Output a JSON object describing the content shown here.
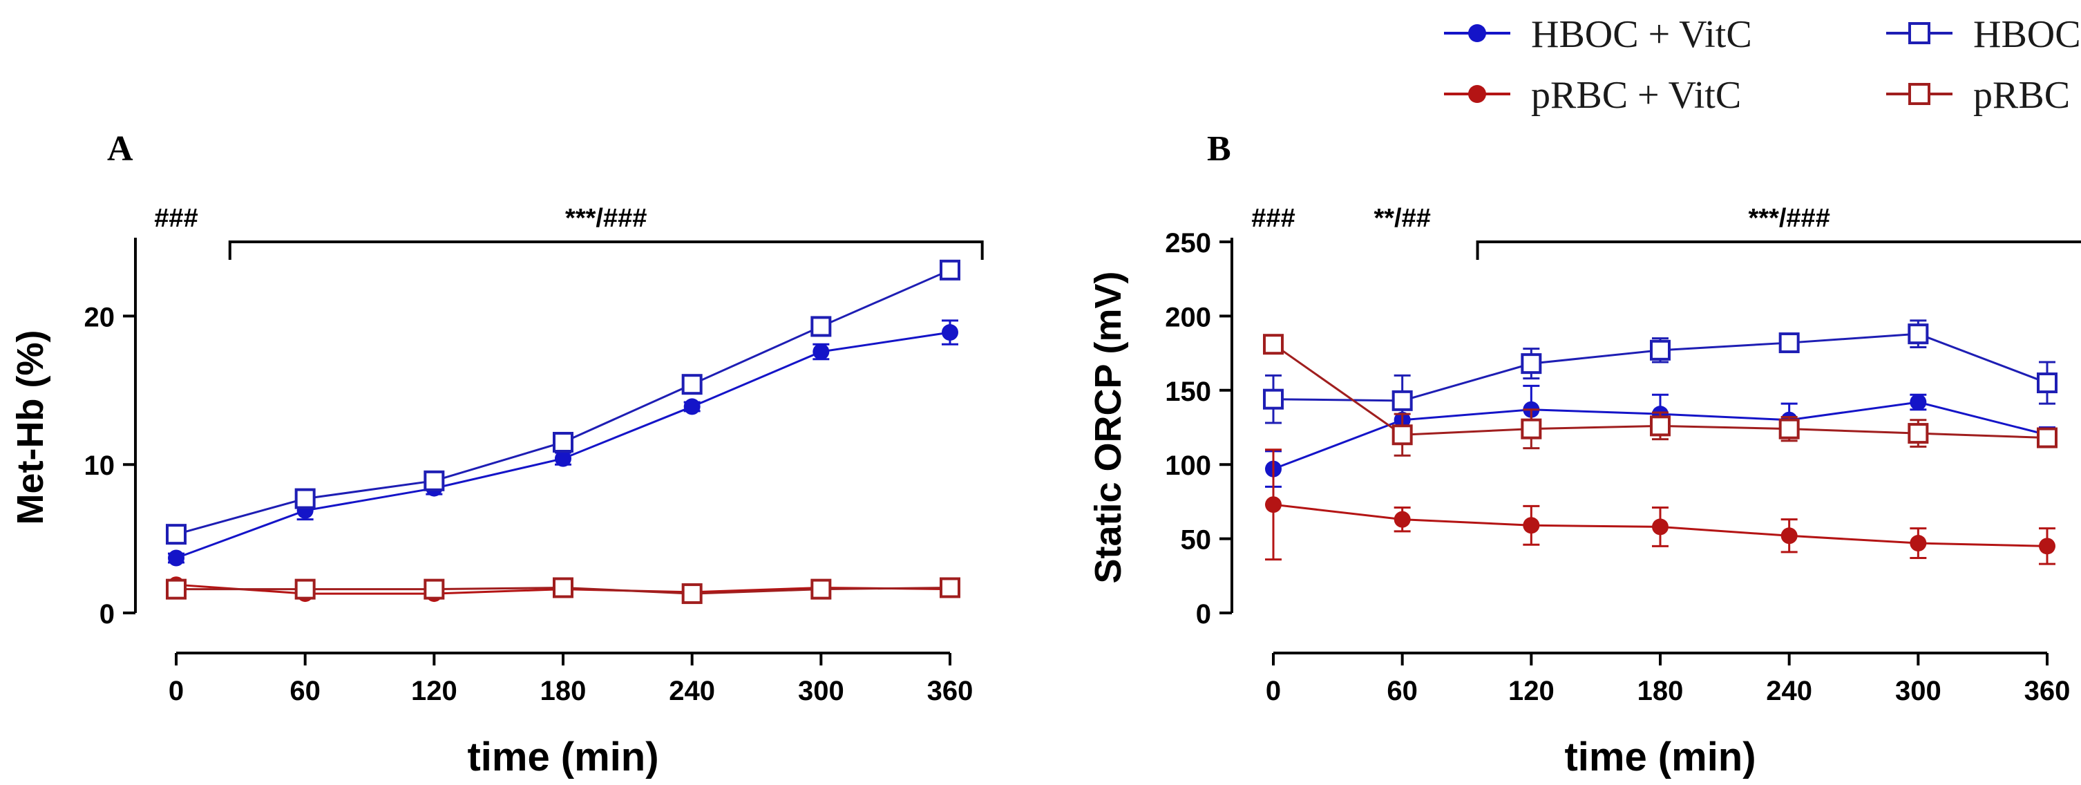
{
  "legend": {
    "placement": "top-right",
    "entries": [
      {
        "label": "HBOC + VitC",
        "color": "#1414c8",
        "marker": "filled-circle"
      },
      {
        "label": "HBOC",
        "color": "#1e1eb4",
        "marker": "open-square"
      },
      {
        "label": "pRBC + VitC",
        "color": "#b41414",
        "marker": "filled-circle"
      },
      {
        "label": "pRBC",
        "color": "#a01e1e",
        "marker": "open-square"
      }
    ]
  },
  "chart_data": [
    {
      "panel_label": "A",
      "type": "line",
      "title": "",
      "xlabel": "time (min)",
      "ylabel": "Met-Hb (%)",
      "x": [
        0,
        60,
        120,
        180,
        240,
        300,
        360
      ],
      "xticks": [
        "0",
        "60",
        "120",
        "180",
        "240",
        "300",
        "360"
      ],
      "xlim": [
        0,
        360
      ],
      "yticks": [
        "0",
        "10",
        "20"
      ],
      "ylim": [
        0,
        25
      ],
      "grid": false,
      "series": [
        {
          "name": "HBOC + VitC",
          "color": "#1414c8",
          "marker": "filled-circle",
          "values": [
            3.7,
            6.9,
            8.4,
            10.4,
            13.9,
            17.6,
            18.9
          ],
          "errors": [
            0.3,
            0.6,
            0.4,
            0.4,
            0.3,
            0.5,
            0.8
          ]
        },
        {
          "name": "HBOC",
          "color": "#1e1eb4",
          "marker": "open-square",
          "values": [
            5.3,
            7.7,
            8.9,
            11.5,
            15.4,
            19.3,
            23.1
          ],
          "errors": [
            0.2,
            0.2,
            0.2,
            0.3,
            0.3,
            0.3,
            0.3
          ]
        },
        {
          "name": "pRBC + VitC",
          "color": "#b41414",
          "marker": "filled-circle",
          "values": [
            1.9,
            1.3,
            1.3,
            1.6,
            1.4,
            1.7,
            1.6
          ],
          "errors": [
            0.1,
            0.1,
            0.1,
            0.1,
            0.1,
            0.1,
            0.1
          ]
        },
        {
          "name": "pRBC",
          "color": "#a01e1e",
          "marker": "open-square",
          "values": [
            1.6,
            1.6,
            1.6,
            1.7,
            1.3,
            1.6,
            1.7
          ],
          "errors": [
            0.1,
            0.1,
            0.1,
            0.1,
            0.1,
            0.1,
            0.1
          ]
        }
      ],
      "annotations": [
        {
          "text": "###",
          "at_x": 0
        },
        {
          "text": "***/###",
          "span_x": [
            25,
            375
          ]
        }
      ]
    },
    {
      "panel_label": "B",
      "type": "line",
      "title": "",
      "xlabel": "time (min)",
      "ylabel": "Static ORCP (mV)",
      "x": [
        0,
        60,
        120,
        180,
        240,
        300,
        360
      ],
      "xticks": [
        "0",
        "60",
        "120",
        "180",
        "240",
        "300",
        "360"
      ],
      "xlim": [
        0,
        360
      ],
      "yticks": [
        "0",
        "50",
        "100",
        "150",
        "200",
        "250"
      ],
      "ylim": [
        0,
        250
      ],
      "grid": false,
      "series": [
        {
          "name": "HBOC + VitC",
          "color": "#1414c8",
          "marker": "filled-circle",
          "values": [
            97,
            130,
            137,
            134,
            130,
            142,
            120
          ],
          "errors": [
            12,
            14,
            16,
            13,
            11,
            5,
            5
          ]
        },
        {
          "name": "HBOC",
          "color": "#1e1eb4",
          "marker": "open-square",
          "values": [
            144,
            143,
            168,
            177,
            182,
            188,
            155
          ],
          "errors": [
            16,
            17,
            10,
            8,
            5,
            9,
            14
          ]
        },
        {
          "name": "pRBC + VitC",
          "color": "#b41414",
          "marker": "filled-circle",
          "values": [
            73,
            63,
            59,
            58,
            52,
            47,
            45
          ],
          "errors": [
            37,
            8,
            13,
            13,
            11,
            10,
            12
          ]
        },
        {
          "name": "pRBC",
          "color": "#a01e1e",
          "marker": "open-square",
          "values": [
            181,
            120,
            124,
            126,
            124,
            121,
            118
          ],
          "errors": [
            4,
            14,
            13,
            9,
            8,
            9,
            5
          ]
        }
      ],
      "annotations": [
        {
          "text": "###",
          "at_x": 0
        },
        {
          "text": "**/##",
          "at_x": 60
        },
        {
          "text": "***/###",
          "span_x": [
            95,
            385
          ]
        }
      ]
    }
  ]
}
